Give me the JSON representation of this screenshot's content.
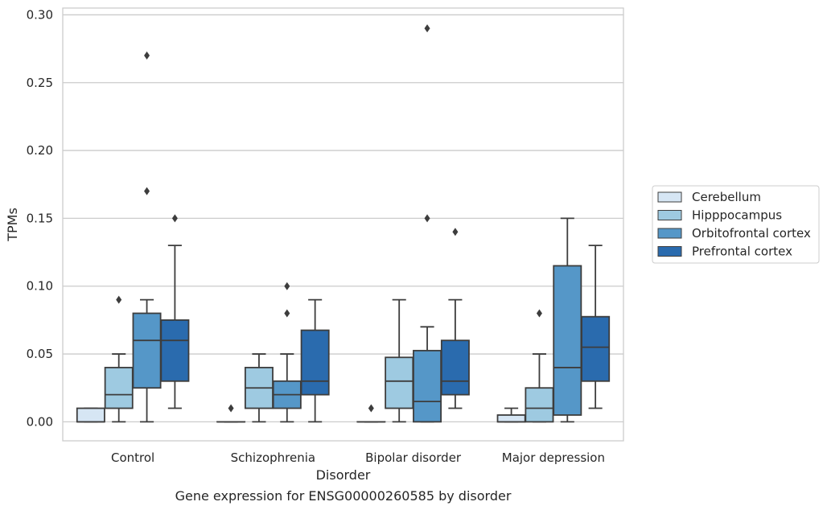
{
  "chart_data": {
    "type": "box",
    "title": "",
    "caption": "Gene expression for ENSG00000260585 by disorder",
    "xlabel": "Disorder",
    "ylabel": "TPMs",
    "ylim": [
      -0.014,
      0.305
    ],
    "yticks": [
      0.0,
      0.05,
      0.1,
      0.15,
      0.2,
      0.25,
      0.3
    ],
    "ytick_labels": [
      "0.00",
      "0.05",
      "0.10",
      "0.15",
      "0.20",
      "0.25",
      "0.30"
    ],
    "grid": "horizontal",
    "legend_position": "right",
    "categories": [
      "Control",
      "Schizophrenia",
      "Bipolar disorder",
      "Major depression"
    ],
    "series": [
      {
        "name": "Cerebellum",
        "color": "#d6e6f4",
        "boxes": [
          {
            "whisker_low": 0.0,
            "q1": 0.0,
            "median": 0.0,
            "q3": 0.01,
            "whisker_high": 0.01,
            "outliers": []
          },
          {
            "whisker_low": 0.0,
            "q1": 0.0,
            "median": 0.0,
            "q3": 0.0,
            "whisker_high": 0.0,
            "outliers": [
              0.01
            ]
          },
          {
            "whisker_low": 0.0,
            "q1": 0.0,
            "median": 0.0,
            "q3": 0.0,
            "whisker_high": 0.0,
            "outliers": [
              0.01
            ]
          },
          {
            "whisker_low": 0.0,
            "q1": 0.0,
            "median": 0.0,
            "q3": 0.005,
            "whisker_high": 0.01,
            "outliers": []
          }
        ]
      },
      {
        "name": "Hipppocampus",
        "color": "#9ecae1",
        "boxes": [
          {
            "whisker_low": 0.0,
            "q1": 0.01,
            "median": 0.02,
            "q3": 0.04,
            "whisker_high": 0.05,
            "outliers": [
              0.09
            ]
          },
          {
            "whisker_low": 0.0,
            "q1": 0.01,
            "median": 0.025,
            "q3": 0.04,
            "whisker_high": 0.05,
            "outliers": []
          },
          {
            "whisker_low": 0.0,
            "q1": 0.01,
            "median": 0.03,
            "q3": 0.0475,
            "whisker_high": 0.09,
            "outliers": []
          },
          {
            "whisker_low": 0.0,
            "q1": 0.0,
            "median": 0.01,
            "q3": 0.025,
            "whisker_high": 0.05,
            "outliers": [
              0.08
            ]
          }
        ]
      },
      {
        "name": "Orbitofrontal cortex",
        "color": "#5597c8",
        "boxes": [
          {
            "whisker_low": 0.0,
            "q1": 0.025,
            "median": 0.06,
            "q3": 0.08,
            "whisker_high": 0.09,
            "outliers": [
              0.17,
              0.27
            ]
          },
          {
            "whisker_low": 0.0,
            "q1": 0.01,
            "median": 0.02,
            "q3": 0.03,
            "whisker_high": 0.05,
            "outliers": [
              0.08,
              0.1
            ]
          },
          {
            "whisker_low": 0.0,
            "q1": 0.0,
            "median": 0.015,
            "q3": 0.0525,
            "whisker_high": 0.07,
            "outliers": [
              0.15,
              0.29
            ]
          },
          {
            "whisker_low": 0.0,
            "q1": 0.005,
            "median": 0.04,
            "q3": 0.115,
            "whisker_high": 0.15,
            "outliers": []
          }
        ]
      },
      {
        "name": "Prefrontal cortex",
        "color": "#2a6bae",
        "boxes": [
          {
            "whisker_low": 0.01,
            "q1": 0.03,
            "median": 0.06,
            "q3": 0.075,
            "whisker_high": 0.13,
            "outliers": [
              0.15
            ]
          },
          {
            "whisker_low": 0.0,
            "q1": 0.02,
            "median": 0.03,
            "q3": 0.0675,
            "whisker_high": 0.09,
            "outliers": []
          },
          {
            "whisker_low": 0.01,
            "q1": 0.02,
            "median": 0.03,
            "q3": 0.06,
            "whisker_high": 0.09,
            "outliers": [
              0.14
            ]
          },
          {
            "whisker_low": 0.01,
            "q1": 0.03,
            "median": 0.055,
            "q3": 0.0775,
            "whisker_high": 0.13,
            "outliers": []
          }
        ]
      }
    ]
  }
}
